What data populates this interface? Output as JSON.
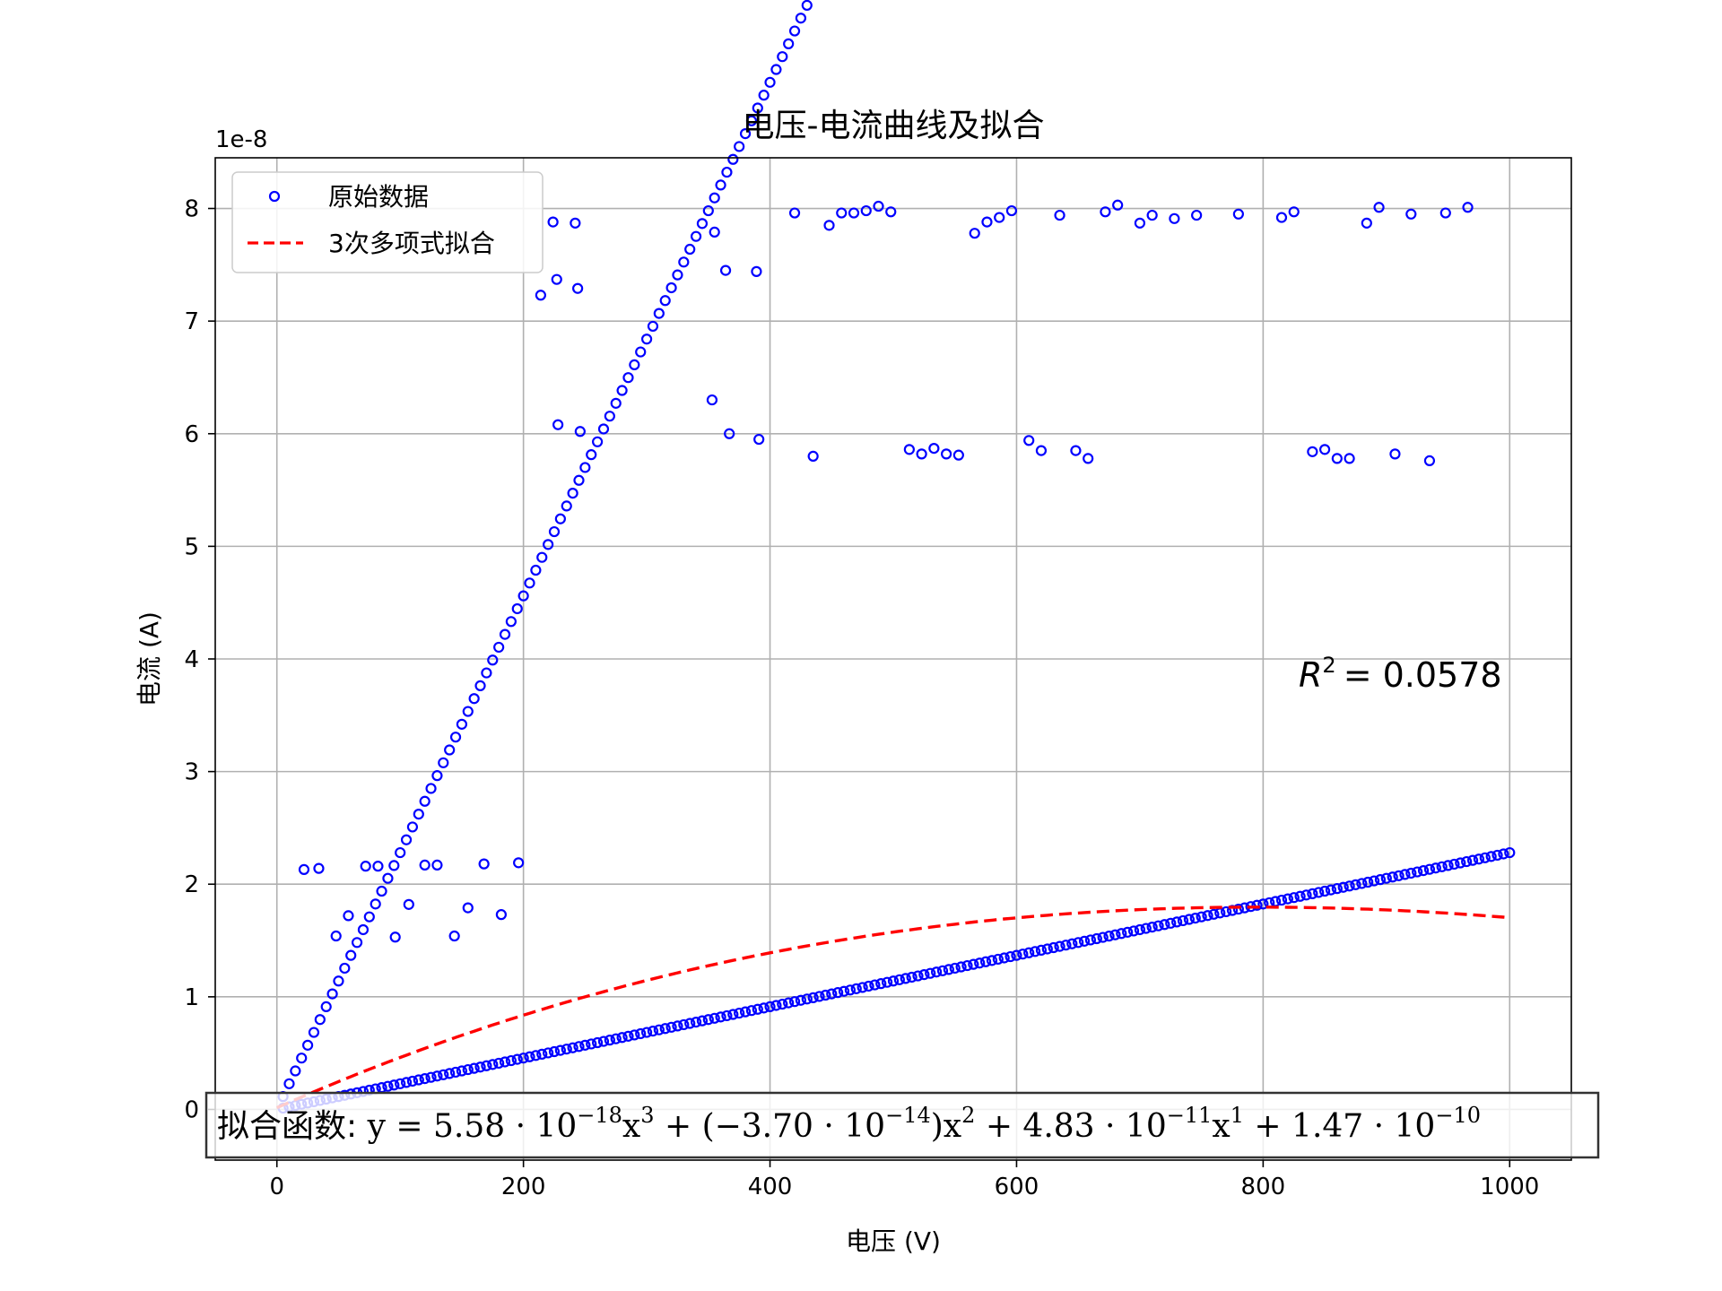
{
  "chart_data": {
    "type": "scatter",
    "title": "电压-电流曲线及拟合",
    "xlabel": "电压 (V)",
    "ylabel": "电流 (A)",
    "y_offset_label": "1e-8",
    "xlim": [
      -50,
      1050
    ],
    "ylim": [
      -0.45,
      8.45
    ],
    "y_unit_scale": 1e-08,
    "xticks": [
      0,
      200,
      400,
      600,
      800,
      1000
    ],
    "yticks": [
      0,
      1,
      2,
      3,
      4,
      5,
      6,
      7,
      8
    ],
    "xtick_labels": [
      "0",
      "200",
      "400",
      "600",
      "800",
      "1000"
    ],
    "ytick_labels": [
      "0",
      "1",
      "2",
      "3",
      "4",
      "5",
      "6",
      "7",
      "8"
    ],
    "grid": true,
    "legend": {
      "placement": "upper-left",
      "entries": [
        "原始数据",
        "3次多项式拟合"
      ]
    },
    "colors": {
      "points": "#0000ff",
      "fit": "#ff0000"
    },
    "r_squared": {
      "lhs": "R",
      "exponent": "2",
      "rhs": "= 0.0578"
    },
    "equation": {
      "prefix": "拟合函数: ",
      "parts": [
        {
          "t": "y = 5.58 · 10"
        },
        {
          "t": "−18",
          "sup": true
        },
        {
          "t": "x"
        },
        {
          "t": "3",
          "sup": true
        },
        {
          "t": " + (−3.70 · 10"
        },
        {
          "t": "−14",
          "sup": true
        },
        {
          "t": ")x"
        },
        {
          "t": "2",
          "sup": true
        },
        {
          "t": " + 4.83 · 10"
        },
        {
          "t": "−11",
          "sup": true
        },
        {
          "t": "x"
        },
        {
          "t": "1",
          "sup": true
        },
        {
          "t": " + 1.47 · 10"
        },
        {
          "t": "−10",
          "sup": true
        }
      ]
    },
    "fit": {
      "name": "3次多项式拟合",
      "coefficients": [
        5.58e-18,
        -3.7e-14,
        4.83e-11,
        1.47e-10
      ],
      "x_range": [
        0,
        1000
      ]
    },
    "series": [
      {
        "name": "原始数据",
        "description_linear": {
          "slope_per_V": 0.0228,
          "x_start": 5,
          "x_end": 1000,
          "step": 5
        },
        "description_low": {
          "slope_per_V": 0.00228,
          "x_start": 5,
          "x_end": 1000,
          "step": 5
        },
        "scatter_points": [
          [
            22,
            2.13
          ],
          [
            34,
            2.14
          ],
          [
            48,
            1.54
          ],
          [
            58,
            1.72
          ],
          [
            72,
            2.16
          ],
          [
            82,
            2.16
          ],
          [
            96,
            1.53
          ],
          [
            107,
            1.82
          ],
          [
            120,
            2.17
          ],
          [
            130,
            2.17
          ],
          [
            144,
            1.54
          ],
          [
            155,
            1.79
          ],
          [
            168,
            2.18
          ],
          [
            182,
            1.73
          ],
          [
            196,
            2.19
          ],
          [
            214,
            7.23
          ],
          [
            224,
            7.88
          ],
          [
            227,
            7.37
          ],
          [
            228,
            6.08
          ],
          [
            242,
            7.87
          ],
          [
            244,
            7.29
          ],
          [
            246,
            6.02
          ],
          [
            353,
            6.3
          ],
          [
            355,
            7.79
          ],
          [
            364,
            7.45
          ],
          [
            367,
            6.0
          ],
          [
            389,
            7.44
          ],
          [
            391,
            5.95
          ],
          [
            420,
            7.96
          ],
          [
            435,
            5.8
          ],
          [
            448,
            7.85
          ],
          [
            458,
            7.96
          ],
          [
            468,
            7.96
          ],
          [
            478,
            7.98
          ],
          [
            488,
            8.02
          ],
          [
            498,
            7.97
          ],
          [
            513,
            5.86
          ],
          [
            523,
            5.82
          ],
          [
            533,
            5.87
          ],
          [
            543,
            5.82
          ],
          [
            553,
            5.81
          ],
          [
            566,
            7.78
          ],
          [
            576,
            7.88
          ],
          [
            586,
            7.92
          ],
          [
            596,
            7.98
          ],
          [
            610,
            5.94
          ],
          [
            620,
            5.85
          ],
          [
            635,
            7.94
          ],
          [
            648,
            5.85
          ],
          [
            658,
            5.78
          ],
          [
            672,
            7.97
          ],
          [
            682,
            8.03
          ],
          [
            700,
            7.87
          ],
          [
            710,
            7.94
          ],
          [
            728,
            7.91
          ],
          [
            746,
            7.94
          ],
          [
            780,
            7.95
          ],
          [
            815,
            7.92
          ],
          [
            825,
            7.97
          ],
          [
            840,
            5.84
          ],
          [
            850,
            5.86
          ],
          [
            860,
            5.78
          ],
          [
            870,
            5.78
          ],
          [
            884,
            7.87
          ],
          [
            894,
            8.01
          ],
          [
            907,
            5.82
          ],
          [
            920,
            7.95
          ],
          [
            935,
            5.76
          ],
          [
            948,
            7.96
          ],
          [
            966,
            8.01
          ]
        ]
      }
    ]
  }
}
